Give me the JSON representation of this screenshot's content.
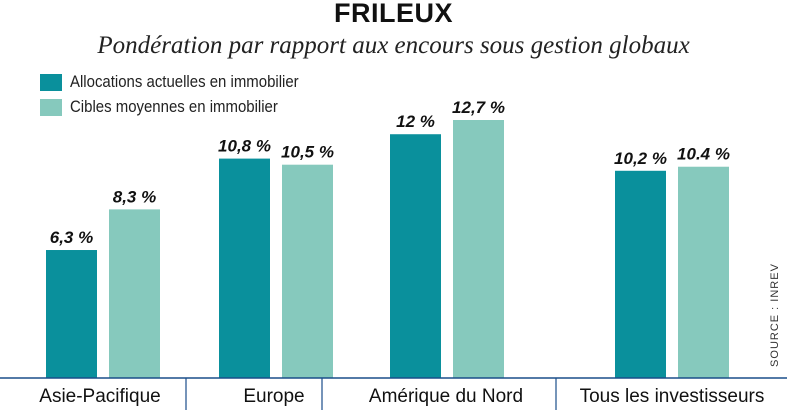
{
  "title": "FRILEUX",
  "subtitle": "Pondération par rapport aux encours sous gestion globaux",
  "source": "SOURCE : INREV",
  "colors": {
    "current": "#0a909c",
    "target": "#86c9bd",
    "axis": "#1a4e8a"
  },
  "chart_data": {
    "type": "bar",
    "categories": [
      "Asie-Pacifique",
      "Europe",
      "Amérique du Nord",
      "Tous les investisseurs"
    ],
    "series": [
      {
        "name": "Allocations actuelles en immobilier",
        "values": [
          6.3,
          10.8,
          12,
          10.2
        ],
        "labels": [
          "6,3 %",
          "10,8 %",
          "12 %",
          "10,2 %"
        ]
      },
      {
        "name": "Cibles moyennes en immobilier",
        "values": [
          8.3,
          10.5,
          12.7,
          10.4
        ],
        "labels": [
          "8,3 %",
          "10,5 %",
          "12,7 %",
          "10.4 %"
        ]
      }
    ],
    "ylim": [
      0,
      13.5
    ],
    "legend": "top-left",
    "grid": false
  }
}
